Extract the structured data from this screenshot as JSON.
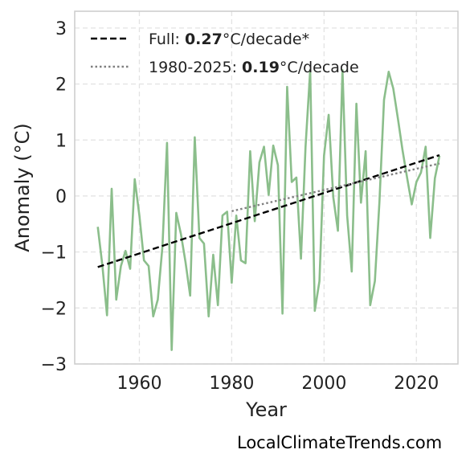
{
  "chart_data": {
    "type": "line",
    "xlabel": "Year",
    "ylabel": "Anomaly (°C)",
    "xlim": [
      1946,
      2029
    ],
    "ylim": [
      -3,
      3.3
    ],
    "xticks": [
      1960,
      1980,
      2000,
      2020
    ],
    "yticks": [
      -3,
      -2,
      -1,
      0,
      1,
      2,
      3
    ],
    "xtick_labels": [
      "1960",
      "1980",
      "2000",
      "2020"
    ],
    "ytick_labels": [
      "−3",
      "−2",
      "−1",
      "0",
      "1",
      "2",
      "3"
    ],
    "grid": true,
    "legend_position": "top-left",
    "series": [
      {
        "color": "#8bbe8b",
        "style": "solid",
        "x": [
          1951,
          1952,
          1953,
          1954,
          1955,
          1956,
          1957,
          1958,
          1959,
          1960,
          1961,
          1962,
          1963,
          1964,
          1965,
          1966,
          1967,
          1968,
          1969,
          1970,
          1971,
          1972,
          1973,
          1974,
          1975,
          1976,
          1977,
          1978,
          1979,
          1980,
          1981,
          1982,
          1983,
          1984,
          1985,
          1986,
          1987,
          1988,
          1989,
          1990,
          1991,
          1992,
          1993,
          1994,
          1995,
          1996,
          1997,
          1998,
          1999,
          2000,
          2001,
          2002,
          2003,
          2004,
          2005,
          2006,
          2007,
          2008,
          2009,
          2010,
          2011,
          2012,
          2013,
          2014,
          2015,
          2016,
          2017,
          2018,
          2019,
          2020,
          2021,
          2022,
          2023,
          2024,
          2025
        ],
        "y": [
          -0.55,
          -1.25,
          -2.13,
          0.13,
          -1.85,
          -1.25,
          -0.98,
          -1.3,
          0.3,
          -0.35,
          -1.15,
          -1.25,
          -2.15,
          -1.85,
          -0.9,
          0.95,
          -2.75,
          -0.3,
          -0.68,
          -1.18,
          -1.78,
          1.05,
          -0.75,
          -0.85,
          -2.15,
          -1.05,
          -1.95,
          -0.35,
          -0.28,
          -1.55,
          -0.35,
          -1.15,
          -1.2,
          0.8,
          -0.45,
          0.6,
          0.88,
          0.02,
          0.9,
          0.55,
          -2.1,
          1.95,
          0.25,
          0.33,
          -1.12,
          0.88,
          2.25,
          -2.05,
          -1.52,
          0.72,
          1.45,
          -0.02,
          -0.62,
          2.25,
          -0.35,
          -1.35,
          1.65,
          -0.12,
          0.8,
          -1.95,
          -1.52,
          -0.1,
          1.72,
          2.22,
          1.92,
          1.38,
          0.82,
          0.32,
          -0.15,
          0.25,
          0.42,
          0.88,
          -0.75,
          0.32,
          0.72
        ]
      },
      {
        "name": "Full",
        "rate": "0.27",
        "unit_suffix": "°C/decade*",
        "color": "#000000",
        "style": "dashed",
        "x": [
          1951,
          2025
        ],
        "y": [
          -1.27,
          0.73
        ]
      },
      {
        "name": "1980-2025",
        "rate": "0.19",
        "unit_suffix": "°C/decade",
        "color": "#808080",
        "style": "dotted",
        "x": [
          1980,
          2025
        ],
        "y": [
          -0.27,
          0.58
        ]
      }
    ]
  },
  "footer": {
    "credit": "LocalClimateTrends.com"
  }
}
